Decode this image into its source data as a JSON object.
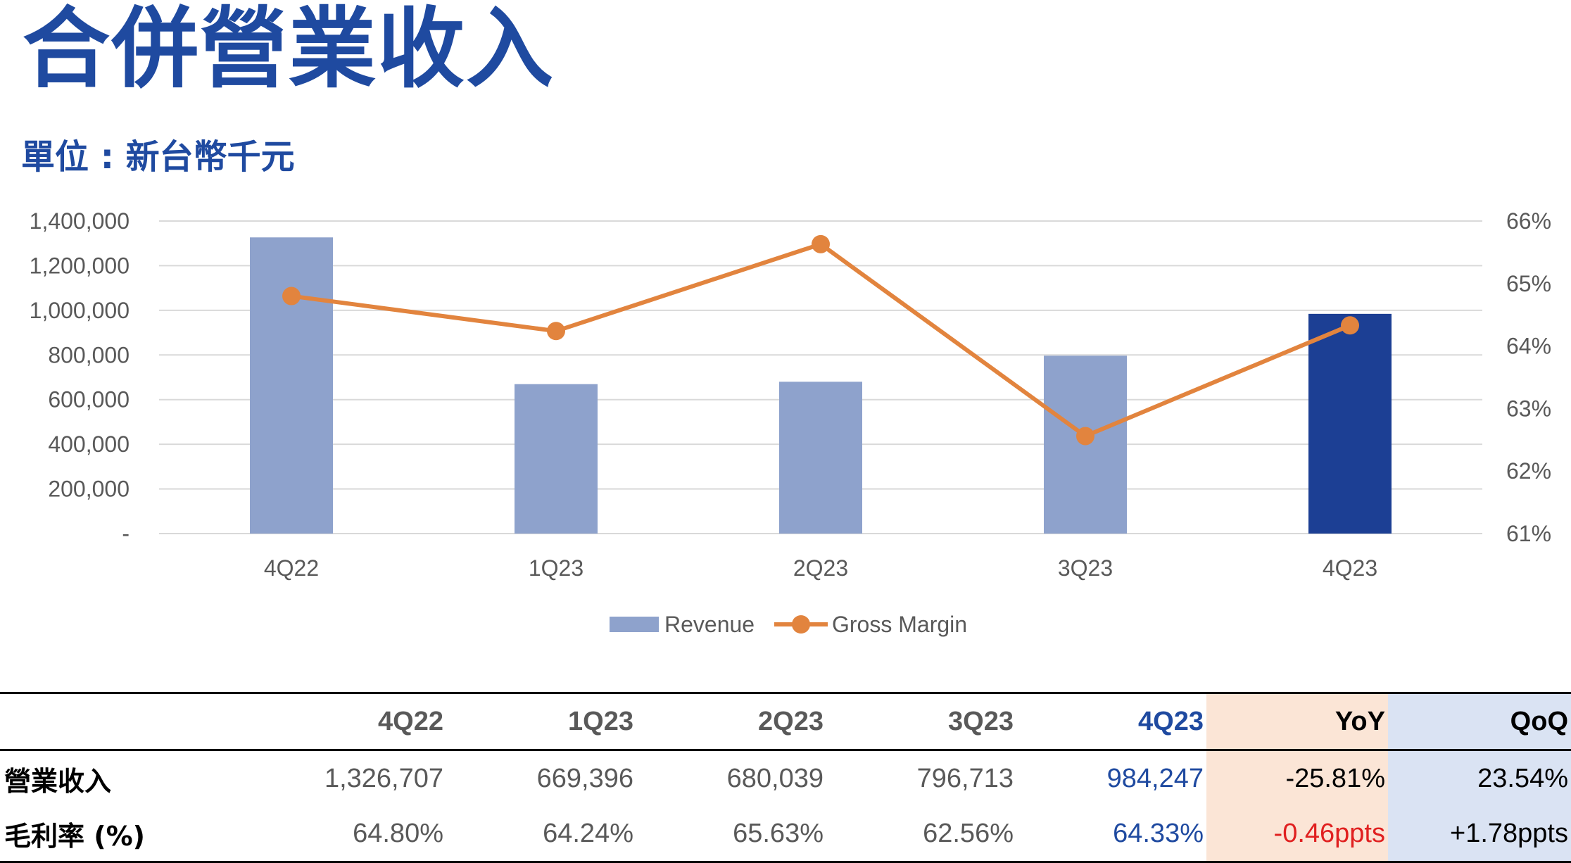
{
  "title": "合併營業收入",
  "unit_label": "單位 : 新台幣千元",
  "colors": {
    "title": "#1f4aa0",
    "bar": "#8ea2cc",
    "bar_highlight": "#1c3f94",
    "line": "#e2843e",
    "grid": "#d9d9d9",
    "axis_text": "#595959",
    "yoy_bg": "#fbe5d6",
    "qoq_bg": "#dae3f3",
    "negative": "#e02020"
  },
  "chart_data": {
    "type": "bar",
    "categories": [
      "4Q22",
      "1Q23",
      "2Q23",
      "3Q23",
      "4Q23"
    ],
    "series": [
      {
        "name": "Revenue",
        "type": "bar",
        "axis": "left",
        "values": [
          1326707,
          669396,
          680039,
          796713,
          984247
        ],
        "highlight_index": 4
      },
      {
        "name": "Gross Margin",
        "type": "line",
        "axis": "right",
        "values": [
          64.8,
          64.24,
          65.63,
          62.56,
          64.33
        ]
      }
    ],
    "y_left": {
      "range": [
        0,
        1400000
      ],
      "ticks": [
        0,
        200000,
        400000,
        600000,
        800000,
        1000000,
        1200000,
        1400000
      ],
      "tick_labels": [
        "-",
        "200,000",
        "400,000",
        "600,000",
        "800,000",
        "1,000,000",
        "1,200,000",
        "1,400,000"
      ]
    },
    "y_right": {
      "range": [
        61,
        66
      ],
      "ticks": [
        61,
        62,
        63,
        64,
        65,
        66
      ],
      "tick_labels": [
        "61%",
        "62%",
        "63%",
        "64%",
        "65%",
        "66%"
      ]
    },
    "grid": true,
    "legend": {
      "position": "bottom",
      "entries": [
        "Revenue",
        "Gross Margin"
      ]
    }
  },
  "table": {
    "headers": [
      "",
      "4Q22",
      "1Q23",
      "2Q23",
      "3Q23",
      "4Q23",
      "YoY",
      "QoQ"
    ],
    "rows": [
      {
        "label": "營業收入",
        "values": [
          "1,326,707",
          "669,396",
          "680,039",
          "796,713",
          "984,247"
        ],
        "yoy": "-25.81%",
        "qoq": "23.54%"
      },
      {
        "label": "毛利率 (%)",
        "values": [
          "64.80%",
          "64.24%",
          "65.63%",
          "62.56%",
          "64.33%"
        ],
        "yoy": "-0.46ppts",
        "qoq": "+1.78ppts"
      }
    ]
  }
}
